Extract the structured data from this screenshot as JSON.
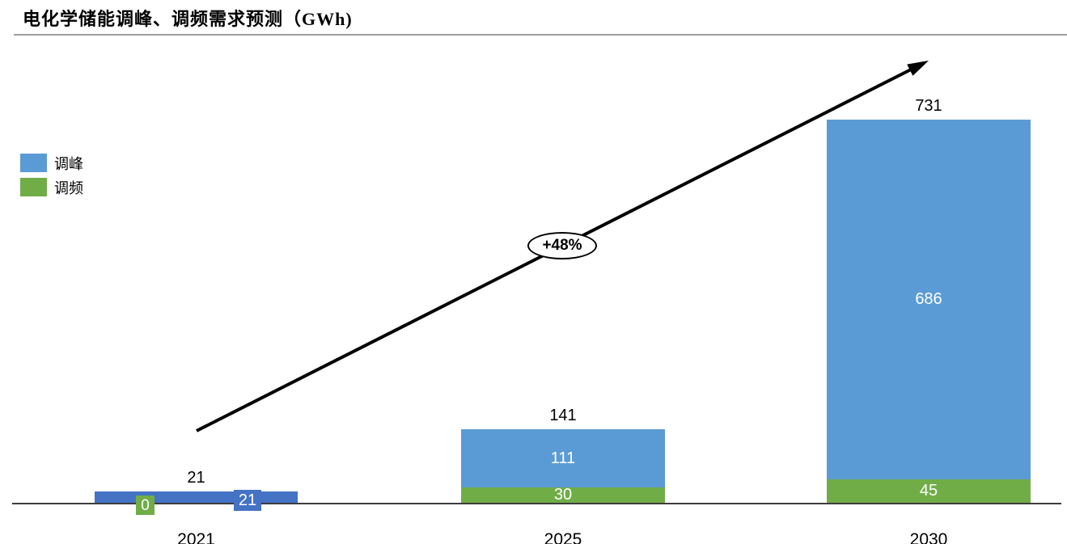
{
  "title": {
    "text": "电化学储能调峰、调频需求预测（GWh)"
  },
  "legend": [
    {
      "label": "调峰",
      "color": "#5B9BD5"
    },
    {
      "label": "调频",
      "color": "#70AD47"
    }
  ],
  "colors": {
    "peak_bar": "#5B9BD5",
    "peak_bar_2021": "#4472C4",
    "freq_bar": "#70AD47",
    "axis_line": "#3d3d3d",
    "arrow": "#000000"
  },
  "annotation": {
    "growth_label": "+48%"
  },
  "bars": {
    "y2021": {
      "year": "2021",
      "total": "21",
      "peak": "21",
      "freq": "0"
    },
    "y2025": {
      "year": "2025",
      "total": "141",
      "peak": "111",
      "freq": "30"
    },
    "y2030": {
      "year": "2030",
      "total": "731",
      "peak": "686",
      "freq": "45"
    }
  },
  "chart_data": {
    "type": "bar",
    "stacked": true,
    "title": "电化学储能调峰、调频需求预测（GWh)",
    "categories": [
      "2021",
      "2025",
      "2030"
    ],
    "series": [
      {
        "name": "调峰",
        "color": "#5B9BD5",
        "values": [
          21,
          111,
          686
        ]
      },
      {
        "name": "调频",
        "color": "#70AD47",
        "values": [
          0,
          30,
          45
        ]
      }
    ],
    "totals": [
      21,
      141,
      731
    ],
    "ylabel": "GWh",
    "ylim": [
      0,
      731
    ],
    "grid": false,
    "legend_position": "top-left",
    "annotations": [
      {
        "type": "arrow",
        "from_category": "2021",
        "to_category": "2030"
      },
      {
        "type": "label",
        "text": "+48%",
        "shape": "ellipse"
      }
    ]
  }
}
